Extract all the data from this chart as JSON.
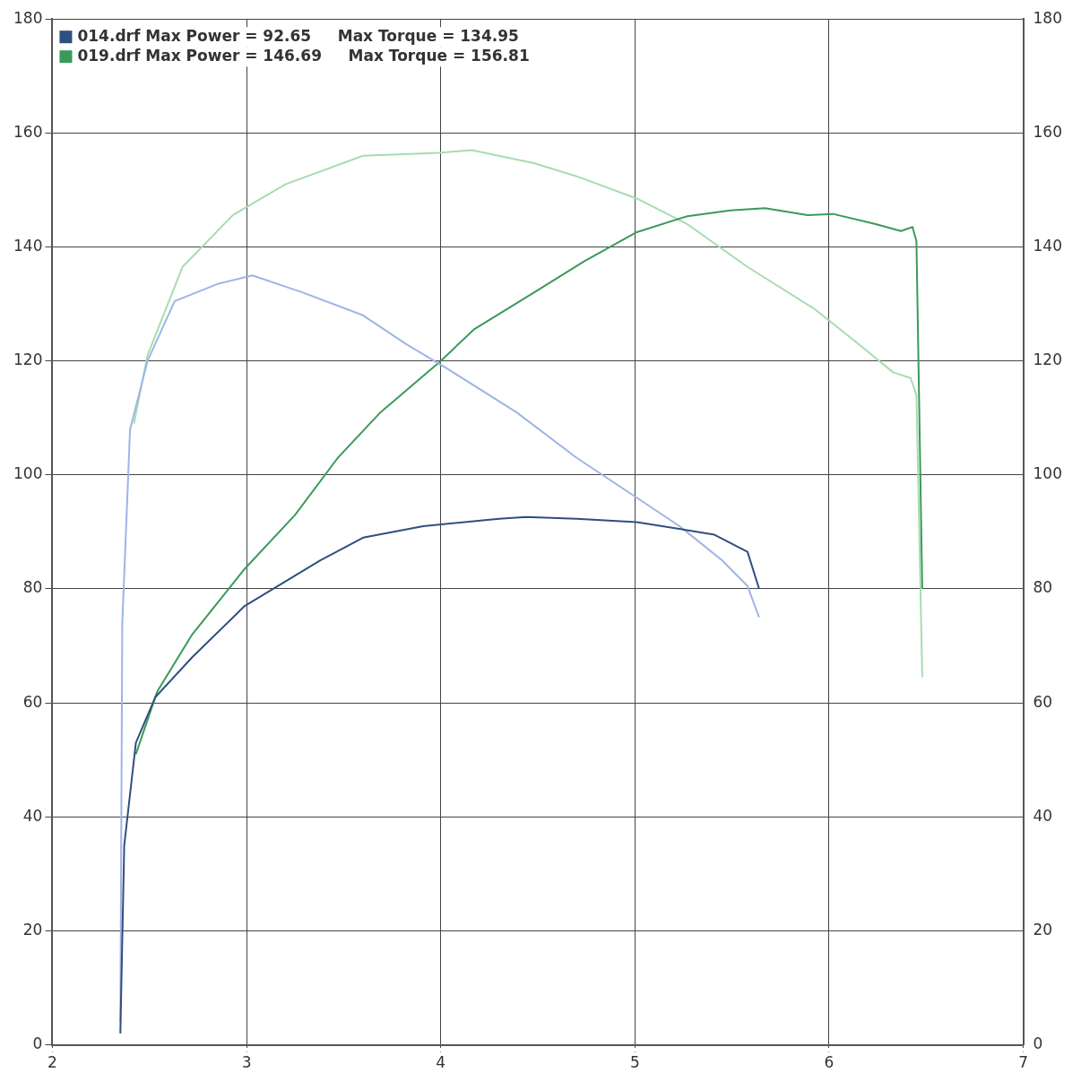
{
  "chart_data": {
    "type": "line",
    "legend": "top left",
    "grid": true,
    "xlim": [
      2,
      7
    ],
    "xticks": [
      2,
      3,
      4,
      5,
      6,
      7
    ],
    "ylim": [
      0,
      180
    ],
    "yticks": [
      0,
      20,
      40,
      60,
      80,
      100,
      120,
      140,
      160,
      180
    ],
    "y2lim": [
      0,
      180
    ],
    "y2ticks": [
      0,
      20,
      40,
      60,
      80,
      100,
      120,
      140,
      160,
      180
    ],
    "series": [
      {
        "name": "014.drf Max Power = 92.65     Max Torque = 134.95",
        "color": "#2f4f7f",
        "x": [
          2.35,
          2.37,
          2.43,
          2.53,
          2.72,
          2.99,
          3.38,
          3.6,
          3.91,
          4.3,
          4.44,
          4.7,
          5.01,
          5.27,
          5.41,
          5.58,
          5.64
        ],
        "values": [
          2,
          35,
          53,
          61,
          68,
          77,
          85,
          89,
          91,
          92.3,
          92.6,
          92.3,
          91.7,
          90.3,
          89.5,
          86.5,
          80
        ]
      },
      {
        "color": "#9fb4e6",
        "x": [
          2.35,
          2.36,
          2.4,
          2.49,
          2.63,
          2.85,
          3.03,
          3.29,
          3.6,
          3.82,
          4.04,
          4.39,
          4.7,
          5.01,
          5.23,
          5.45,
          5.58,
          5.64
        ],
        "values": [
          4,
          74,
          108,
          120,
          130.5,
          133.5,
          135,
          132,
          128,
          123,
          118.5,
          111,
          103,
          96,
          91,
          85,
          80.5,
          75
        ]
      },
      {
        "name": "019.drf Max Power = 146.69     Max Torque = 156.81",
        "color": "#3a9a5a",
        "x": [
          2.43,
          2.54,
          2.72,
          2.99,
          3.25,
          3.47,
          3.69,
          4,
          4.17,
          4.48,
          4.74,
          5.01,
          5.27,
          5.49,
          5.67,
          5.89,
          6.02,
          6.24,
          6.37,
          6.43,
          6.45,
          6.48
        ],
        "values": [
          51,
          62,
          72,
          83.5,
          93,
          103,
          111,
          120,
          125.5,
          132,
          137.5,
          142.6,
          145.4,
          146.4,
          146.8,
          145.6,
          145.8,
          144,
          142.8,
          143.5,
          141,
          80
        ]
      },
      {
        "color": "#a8dcb0",
        "x": [
          2.42,
          2.49,
          2.67,
          2.93,
          3.2,
          3.6,
          3.99,
          4.16,
          4.48,
          4.7,
          5.01,
          5.27,
          5.58,
          5.93,
          6.15,
          6.33,
          6.42,
          6.45,
          6.48
        ],
        "values": [
          109,
          121,
          136.5,
          145.6,
          151,
          156,
          156.5,
          157,
          154.7,
          152.4,
          148.5,
          144,
          136.5,
          129,
          123,
          118,
          117,
          114,
          64.5
        ]
      }
    ]
  }
}
